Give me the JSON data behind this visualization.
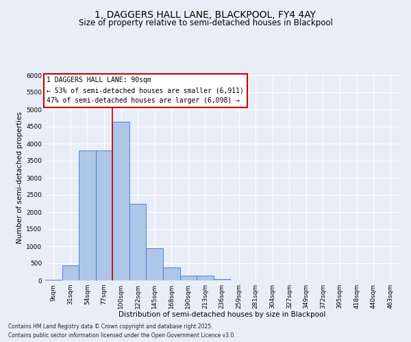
{
  "title": "1, DAGGERS HALL LANE, BLACKPOOL, FY4 4AY",
  "subtitle": "Size of property relative to semi-detached houses in Blackpool",
  "xlabel": "Distribution of semi-detached houses by size in Blackpool",
  "ylabel": "Number of semi-detached properties",
  "footnote1": "Contains HM Land Registry data © Crown copyright and database right 2025.",
  "footnote2": "Contains public sector information licensed under the Open Government Licence v3.0.",
  "annotation_title": "1 DAGGERS HALL LANE: 90sqm",
  "annotation_line1": "← 53% of semi-detached houses are smaller (6,911)",
  "annotation_line2": "47% of semi-detached houses are larger (6,098) →",
  "bar_categories": [
    "9sqm",
    "31sqm",
    "54sqm",
    "77sqm",
    "100sqm",
    "122sqm",
    "145sqm",
    "168sqm",
    "190sqm",
    "213sqm",
    "236sqm",
    "259sqm",
    "281sqm",
    "304sqm",
    "327sqm",
    "349sqm",
    "372sqm",
    "395sqm",
    "418sqm",
    "440sqm",
    "463sqm"
  ],
  "bar_values": [
    25,
    450,
    3800,
    3800,
    4650,
    2250,
    950,
    375,
    150,
    150,
    50,
    0,
    0,
    0,
    0,
    0,
    0,
    0,
    0,
    0,
    0
  ],
  "bar_color": "#aec6e8",
  "bar_edge_color": "#4472c4",
  "vline_color": "#cc0000",
  "vline_x": 3.5,
  "ylim": [
    0,
    6000
  ],
  "yticks": [
    0,
    500,
    1000,
    1500,
    2000,
    2500,
    3000,
    3500,
    4000,
    4500,
    5000,
    5500,
    6000
  ],
  "background_color": "#e8eef7",
  "annotation_box_color": "#ffffff",
  "annotation_box_edge_color": "#cc0000",
  "title_fontsize": 10,
  "subtitle_fontsize": 8.5,
  "axis_label_fontsize": 7.5,
  "tick_fontsize": 6.5,
  "annotation_fontsize": 7,
  "footnote_fontsize": 5.5
}
